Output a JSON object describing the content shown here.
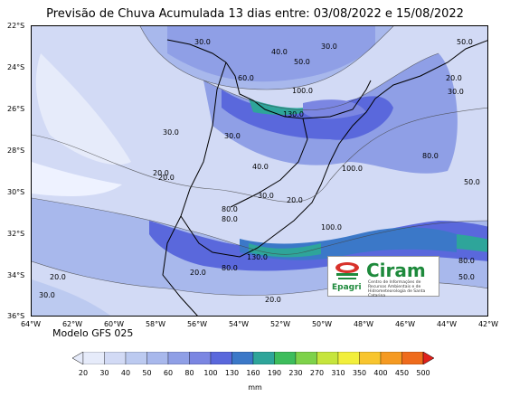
{
  "title": "Previsão de Chuva Acumulada 13 dias entre: 03/08/2022 e 15/08/2022",
  "model": "Modelo GFS 025",
  "units": "mm",
  "lat_ticks": [
    "22°S",
    "24°S",
    "26°S",
    "28°S",
    "30°S",
    "32°S",
    "34°S",
    "36°S"
  ],
  "lon_ticks": [
    "64°W",
    "62°W",
    "60°W",
    "58°W",
    "56°W",
    "54°W",
    "52°W",
    "50°W",
    "48°W",
    "46°W",
    "44°W",
    "42°W"
  ],
  "colorbar": {
    "levels": [
      "20",
      "30",
      "40",
      "50",
      "60",
      "80",
      "100",
      "130",
      "160",
      "190",
      "230",
      "270",
      "310",
      "350",
      "400",
      "450",
      "500"
    ],
    "colors": [
      "#e6ebfa",
      "#d2daf5",
      "#bccaf0",
      "#a8b8ec",
      "#8f9fe6",
      "#7b86e2",
      "#5a68dc",
      "#3b78c8",
      "#2ea59a",
      "#3dbd5c",
      "#7ed24a",
      "#c6e53c",
      "#f2ef3b",
      "#f8c52e",
      "#f59a22",
      "#ef6b1c",
      "#e0201a"
    ]
  },
  "contour_labels": [
    "30.0",
    "40.0",
    "50.0",
    "20.0",
    "30.0",
    "60.0",
    "100.0",
    "130.0",
    "30.0",
    "30.0",
    "50.0",
    "20.0",
    "40.0",
    "30.0",
    "20.0",
    "80.0",
    "100.0",
    "80.0",
    "50.0",
    "80.0",
    "100.0",
    "130.0",
    "20.0",
    "30.0",
    "20.0",
    "20.0",
    "80.0",
    "80.0",
    "50.0",
    "30.0",
    "20.0"
  ],
  "logo": {
    "name": "Ciram",
    "org": "Epagri",
    "subtitle": "Centro de Informações de Recursos Ambientais e de Hidrometeorologia de Santa Catarina"
  }
}
